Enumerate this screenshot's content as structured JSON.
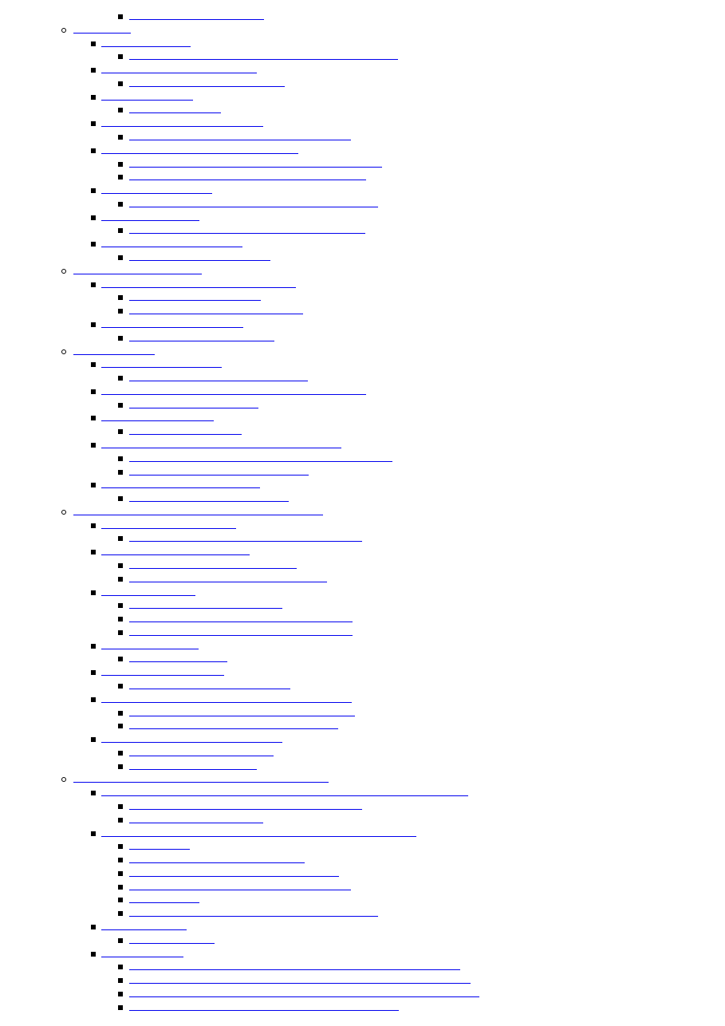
{
  "link_color": "#0000ee",
  "bullet_color": "#000000",
  "items": [
    {
      "level": 3
    },
    {
      "level": 1
    },
    {
      "level": 2
    },
    {
      "level": 3
    },
    {
      "level": 2
    },
    {
      "level": 3
    },
    {
      "level": 2
    },
    {
      "level": 3
    },
    {
      "level": 2
    },
    {
      "level": 3
    },
    {
      "level": 2
    },
    {
      "level": 3
    },
    {
      "level": 3
    },
    {
      "level": 2
    },
    {
      "level": 3
    },
    {
      "level": 2
    },
    {
      "level": 3
    },
    {
      "level": 2
    },
    {
      "level": 3
    },
    {
      "level": 1
    },
    {
      "level": 2
    },
    {
      "level": 3
    },
    {
      "level": 3
    },
    {
      "level": 2
    },
    {
      "level": 3
    },
    {
      "level": 1
    },
    {
      "level": 2
    },
    {
      "level": 3
    },
    {
      "level": 2
    },
    {
      "level": 3
    },
    {
      "level": 2
    },
    {
      "level": 3
    },
    {
      "level": 2
    },
    {
      "level": 3
    },
    {
      "level": 3
    },
    {
      "level": 2
    },
    {
      "level": 3
    },
    {
      "level": 1
    },
    {
      "level": 2
    },
    {
      "level": 3
    },
    {
      "level": 2
    },
    {
      "level": 3
    },
    {
      "level": 3
    },
    {
      "level": 2
    },
    {
      "level": 3
    },
    {
      "level": 3
    },
    {
      "level": 3
    },
    {
      "level": 2
    },
    {
      "level": 3
    },
    {
      "level": 2
    },
    {
      "level": 3
    },
    {
      "level": 2
    },
    {
      "level": 3
    },
    {
      "level": 3
    },
    {
      "level": 2
    },
    {
      "level": 3
    },
    {
      "level": 3
    },
    {
      "level": 1
    },
    {
      "level": 2
    },
    {
      "level": 3
    },
    {
      "level": 3
    },
    {
      "level": 2
    },
    {
      "level": 3
    },
    {
      "level": 3
    },
    {
      "level": 3
    },
    {
      "level": 3
    },
    {
      "level": 3
    },
    {
      "level": 3
    },
    {
      "level": 2
    },
    {
      "level": 3
    },
    {
      "level": 2
    },
    {
      "level": 3
    },
    {
      "level": 3
    },
    {
      "level": 3
    },
    {
      "level": 3
    }
  ]
}
